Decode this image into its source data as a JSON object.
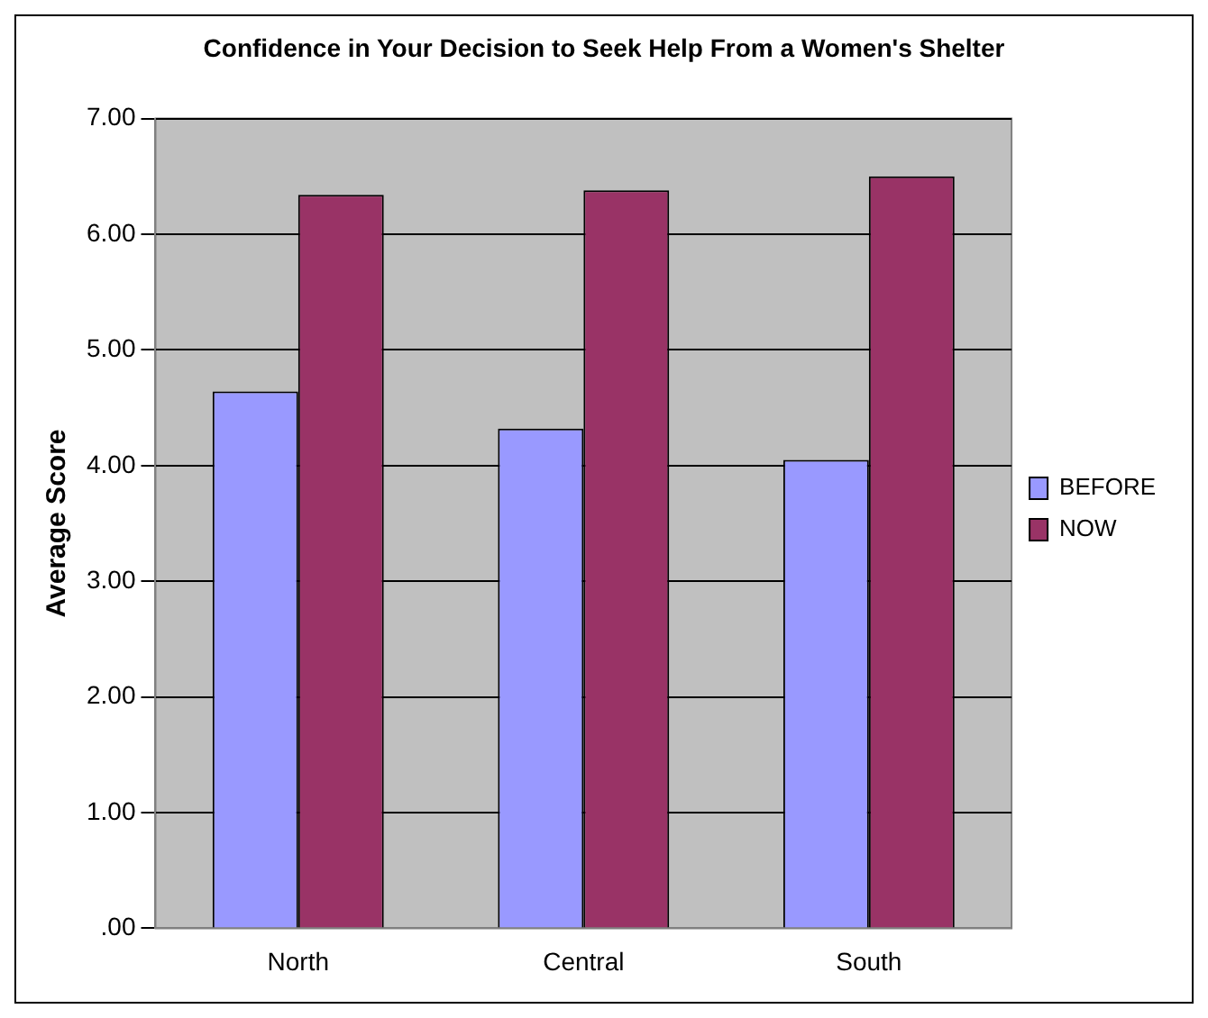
{
  "chart_data": {
    "type": "bar",
    "title": "Confidence in Your Decision to Seek Help From a Women's Shelter",
    "ylabel": "Average Score",
    "categories": [
      "North",
      "Central",
      "South"
    ],
    "series": [
      {
        "name": "BEFORE",
        "color": "#9999ff",
        "values": [
          4.64,
          4.32,
          4.05
        ]
      },
      {
        "name": "NOW",
        "color": "#993366",
        "values": [
          6.34,
          6.38,
          6.5
        ]
      }
    ],
    "ylim": [
      0,
      7
    ],
    "yticks": [
      {
        "value": 0,
        "label": ".00"
      },
      {
        "value": 1,
        "label": "1.00"
      },
      {
        "value": 2,
        "label": "2.00"
      },
      {
        "value": 3,
        "label": "3.00"
      },
      {
        "value": 4,
        "label": "4.00"
      },
      {
        "value": 5,
        "label": "5.00"
      },
      {
        "value": 6,
        "label": "6.00"
      },
      {
        "value": 7,
        "label": "7.00"
      }
    ],
    "grid": "y",
    "legend": "right"
  }
}
